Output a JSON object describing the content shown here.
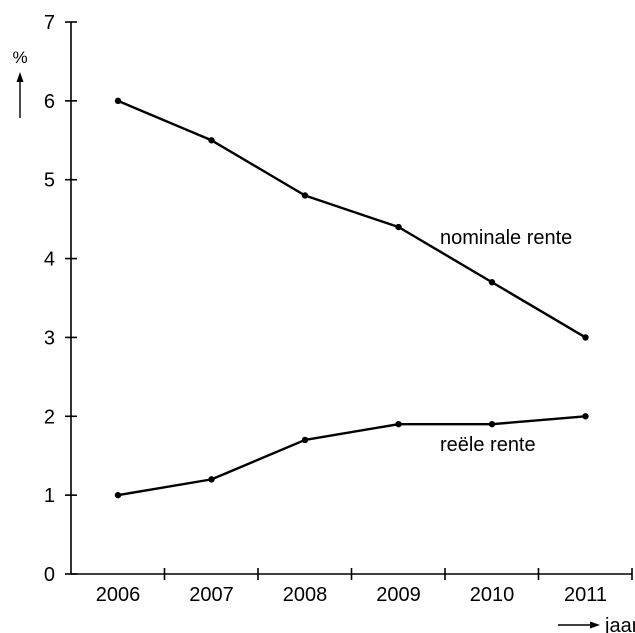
{
  "chart_data": {
    "type": "line",
    "title": "",
    "xlabel": "jaar",
    "ylabel": "%",
    "categories": [
      "2006",
      "2007",
      "2008",
      "2009",
      "2010",
      "2011"
    ],
    "ylim": [
      0,
      7
    ],
    "yticks": [
      "0",
      "1",
      "2",
      "3",
      "4",
      "5",
      "6",
      "7"
    ],
    "grid": false,
    "series": [
      {
        "name": "nominale rente",
        "values": [
          6.0,
          5.5,
          4.8,
          4.4,
          3.7,
          3.0
        ]
      },
      {
        "name": "reële rente",
        "values": [
          1.0,
          1.2,
          1.7,
          1.9,
          1.9,
          2.0
        ]
      }
    ]
  }
}
